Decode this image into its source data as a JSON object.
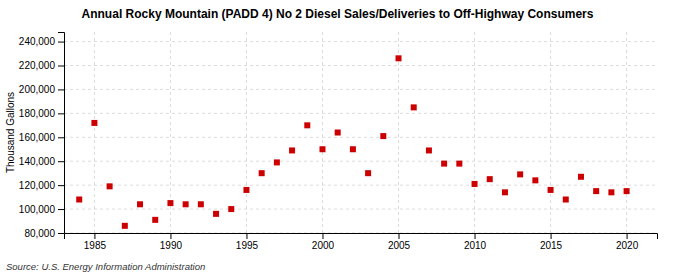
{
  "chart_data": {
    "type": "scatter",
    "title": "Annual Rocky Mountain (PADD 4) No 2 Diesel Sales/Deliveries to Off-Highway Consumers",
    "ylabel": "Thousand Gallons",
    "source": "Source: U.S. Energy Information Administration",
    "x": [
      1984,
      1985,
      1986,
      1987,
      1988,
      1989,
      1990,
      1991,
      1992,
      1993,
      1994,
      1995,
      1996,
      1997,
      1998,
      1999,
      2000,
      2001,
      2002,
      2003,
      2004,
      2005,
      2006,
      2007,
      2008,
      2009,
      2010,
      2011,
      2012,
      2013,
      2014,
      2015,
      2016,
      2017,
      2018,
      2019,
      2020
    ],
    "values": [
      108000,
      172000,
      119000,
      86000,
      104000,
      91000,
      105000,
      104000,
      104000,
      96000,
      100000,
      116000,
      130000,
      139000,
      149000,
      170000,
      150000,
      164000,
      150000,
      130000,
      161000,
      226000,
      185000,
      149000,
      138000,
      138000,
      121000,
      125000,
      114000,
      129000,
      124000,
      116000,
      108000,
      127000,
      115000,
      114000,
      115000
    ],
    "color": "#cc0000",
    "marker": "square",
    "xlim": [
      1983,
      2022
    ],
    "ylim": [
      80000,
      248000
    ],
    "xticks": [
      1985,
      1990,
      1995,
      2000,
      2005,
      2010,
      2015,
      2020
    ],
    "yticks": [
      {
        "value": 80000,
        "label": "80,000"
      },
      {
        "value": 100000,
        "label": "100,000"
      },
      {
        "value": 120000,
        "label": "120,000"
      },
      {
        "value": 140000,
        "label": "140,000"
      },
      {
        "value": 160000,
        "label": "160,000"
      },
      {
        "value": 180000,
        "label": "180,000"
      },
      {
        "value": 200000,
        "label": "200,000"
      },
      {
        "value": 220000,
        "label": "220,000"
      },
      {
        "value": 240000,
        "label": "240,000"
      }
    ],
    "grid": true
  }
}
